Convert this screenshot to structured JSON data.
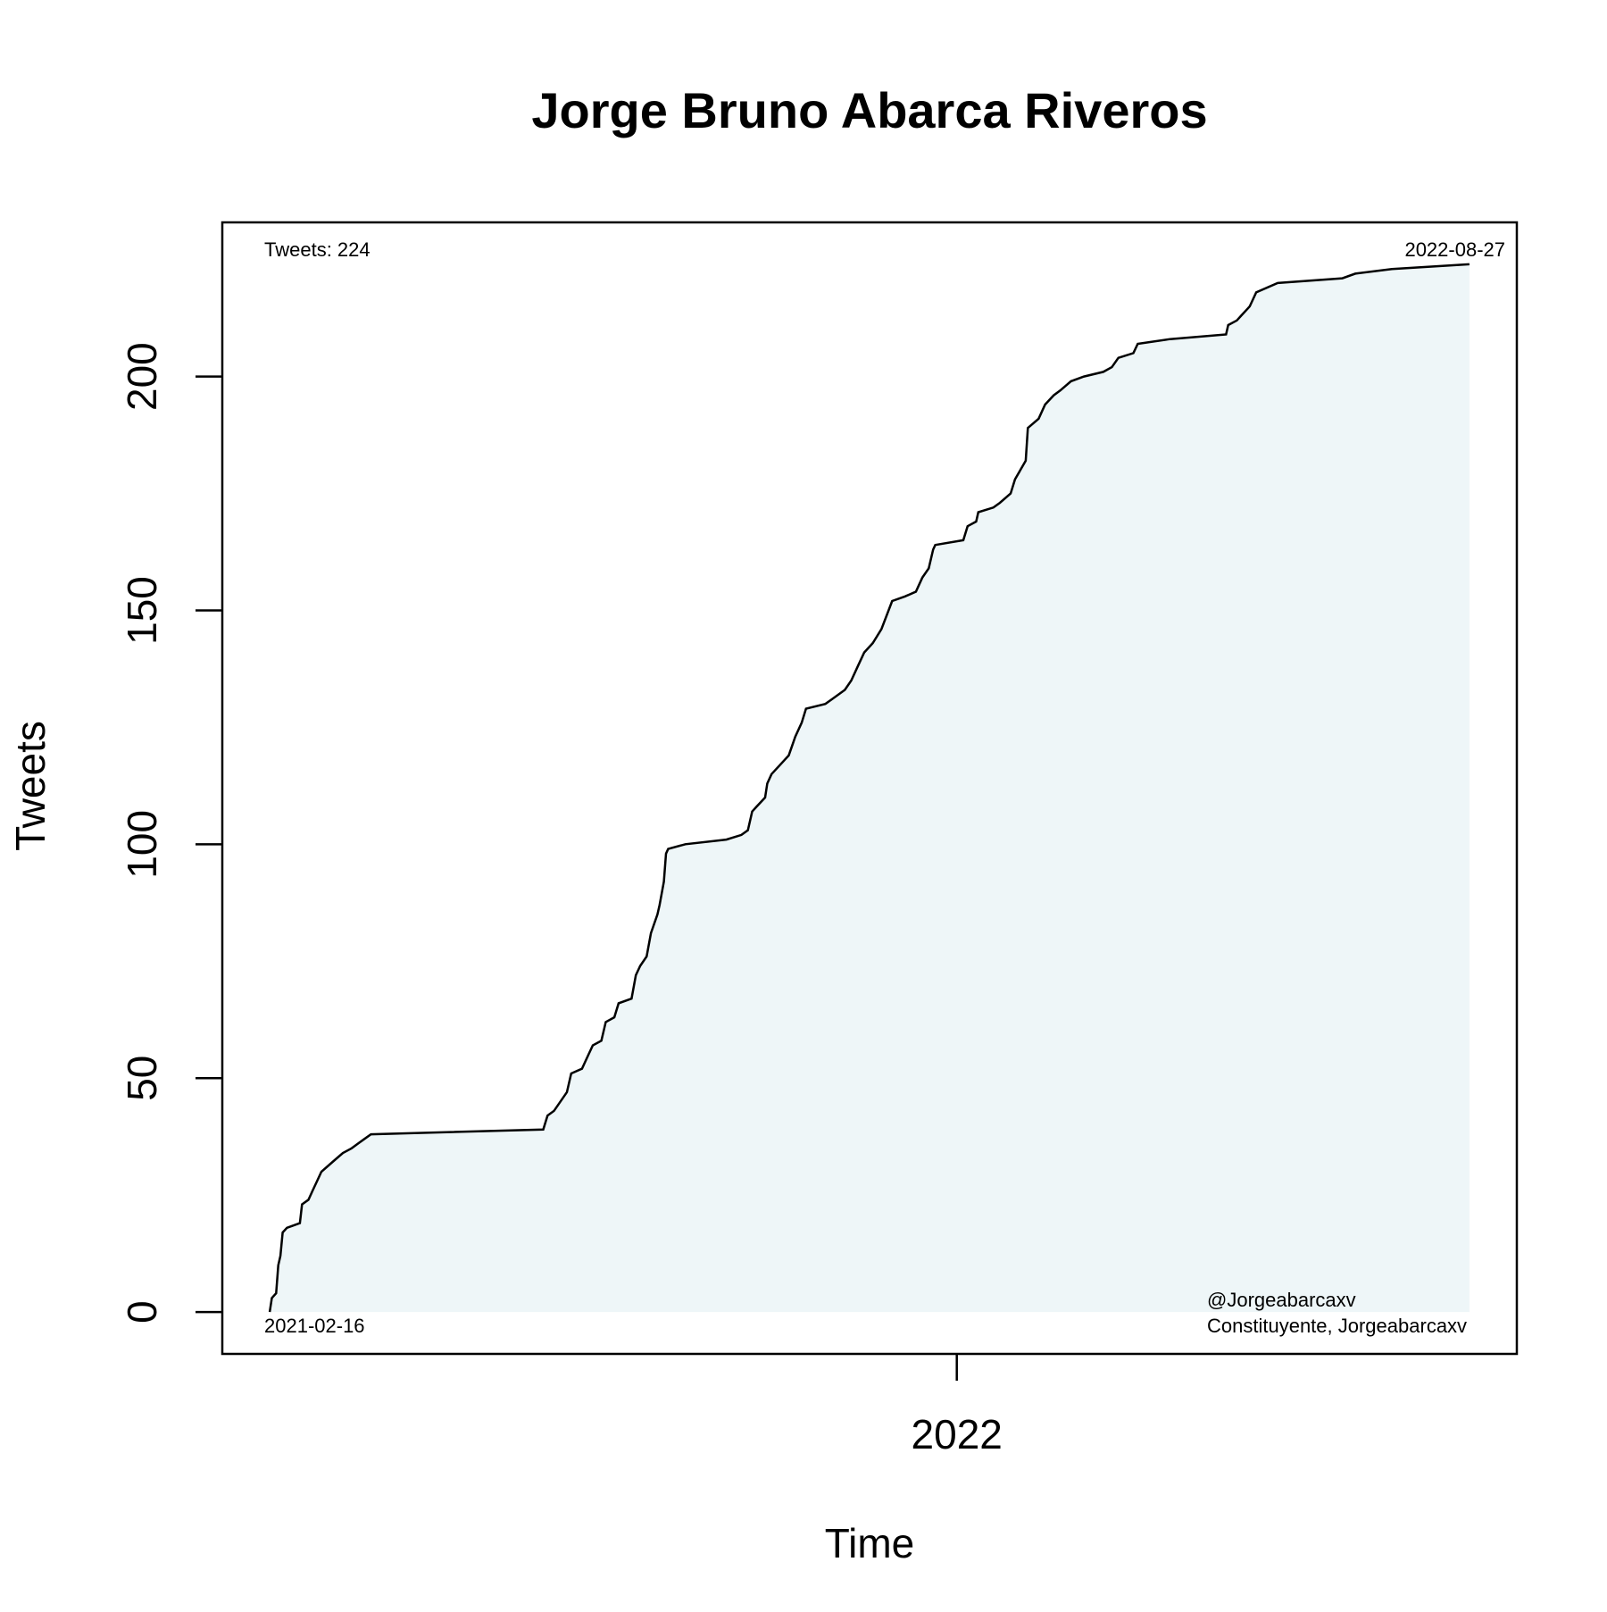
{
  "chart_data": {
    "type": "area",
    "title": "Jorge Bruno Abarca Riveros",
    "x_label": "Time",
    "y_label": "Tweets",
    "annotations": [
      "Tweets: 224",
      "2022-08-27",
      "2021-02-16",
      "@Jorgeabarcaxv",
      "Constituyente, Jorgeabarcaxv"
    ],
    "x": [
      "2021-02-16",
      "2021-02-17",
      "2021-02-19",
      "2021-02-20",
      "2021-02-21",
      "2021-02-22",
      "2021-02-24",
      "2021-03-02",
      "2021-03-03",
      "2021-03-06",
      "2021-03-08",
      "2021-03-10",
      "2021-03-12",
      "2021-03-17",
      "2021-03-22",
      "2021-03-26",
      "2021-03-29",
      "2021-04-01",
      "2021-04-04",
      "2021-06-23",
      "2021-06-25",
      "2021-06-28",
      "2021-07-04",
      "2021-07-06",
      "2021-07-11",
      "2021-07-14",
      "2021-07-16",
      "2021-07-20",
      "2021-07-22",
      "2021-07-26",
      "2021-07-28",
      "2021-08-03",
      "2021-08-05",
      "2021-08-07",
      "2021-08-10",
      "2021-08-12",
      "2021-08-15",
      "2021-08-16",
      "2021-08-18",
      "2021-08-19",
      "2021-08-20",
      "2021-08-28",
      "2021-09-16",
      "2021-09-23",
      "2021-09-26",
      "2021-09-28",
      "2021-09-30",
      "2021-10-04",
      "2021-10-05",
      "2021-10-07",
      "2021-10-11",
      "2021-10-15",
      "2021-10-18",
      "2021-10-21",
      "2021-10-23",
      "2021-11-01",
      "2021-11-04",
      "2021-11-10",
      "2021-11-13",
      "2021-11-16",
      "2021-11-19",
      "2021-11-23",
      "2021-11-27",
      "2021-12-02",
      "2021-12-08",
      "2021-12-13",
      "2021-12-16",
      "2021-12-19",
      "2021-12-21",
      "2021-12-22",
      "2022-01-04",
      "2022-01-06",
      "2022-01-10",
      "2022-01-11",
      "2022-01-18",
      "2022-01-21",
      "2022-01-26",
      "2022-01-28",
      "2022-02-02",
      "2022-02-03",
      "2022-02-08",
      "2022-02-11",
      "2022-02-15",
      "2022-02-18",
      "2022-02-23",
      "2022-03-01",
      "2022-03-10",
      "2022-03-14",
      "2022-03-17",
      "2022-03-24",
      "2022-03-26",
      "2022-04-10",
      "2022-05-06",
      "2022-05-07",
      "2022-05-11",
      "2022-05-13",
      "2022-05-17",
      "2022-05-20",
      "2022-05-30",
      "2022-06-29",
      "2022-07-05",
      "2022-07-22",
      "2022-08-27"
    ],
    "series": [
      {
        "color": "#000000",
        "fill": "#eef6f8",
        "values": [
          0,
          3,
          4,
          10,
          12,
          17,
          18,
          19,
          23,
          24,
          26,
          28,
          30,
          32,
          34,
          35,
          36,
          37,
          38,
          39,
          42,
          43,
          47,
          51,
          52,
          55,
          57,
          58,
          62,
          63,
          66,
          67,
          72,
          74,
          76,
          81,
          85,
          87,
          92,
          98,
          99,
          100,
          101,
          102,
          103,
          107,
          108,
          110,
          113,
          115,
          117,
          119,
          123,
          126,
          129,
          130,
          131,
          133,
          135,
          138,
          141,
          143,
          146,
          152,
          153,
          154,
          157,
          159,
          163,
          164,
          165,
          168,
          169,
          171,
          172,
          173,
          175,
          178,
          182,
          189,
          191,
          194,
          196,
          197,
          199,
          200,
          201,
          202,
          204,
          205,
          207,
          208,
          209,
          211,
          212,
          213,
          215,
          218,
          220,
          221,
          222,
          223,
          224
        ]
      }
    ],
    "xlim": [
      "2021-01-25",
      "2022-09-18"
    ],
    "xticks": [
      {
        "value": "2022-01-01",
        "label": "2022"
      }
    ],
    "ylim": [
      -8.96,
      232.96
    ],
    "yticks": [
      0,
      50,
      100,
      150,
      200
    ]
  }
}
